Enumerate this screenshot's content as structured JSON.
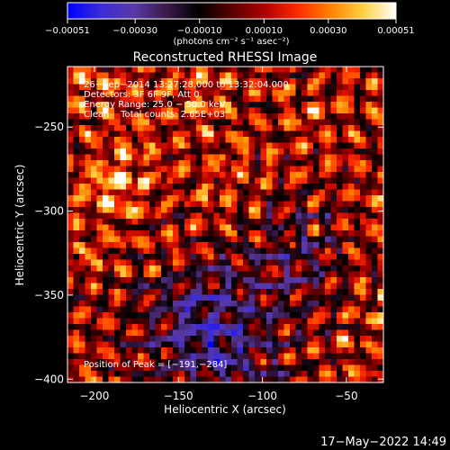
{
  "chart_data": {
    "type": "heatmap",
    "title": "Reconstructed RHESSI Image",
    "xlabel": "Heliocentric X (arcsec)",
    "ylabel": "Heliocentric Y (arcsec)",
    "xlim": [
      -216,
      -28
    ],
    "ylim": [
      -402,
      -214
    ],
    "x_ticks": [
      -200,
      -150,
      -100,
      -50
    ],
    "x_tick_labels": [
      "−200",
      "−150",
      "−100",
      "−50"
    ],
    "y_ticks": [
      -250,
      -300,
      -350,
      -400
    ],
    "y_tick_labels": [
      "−250",
      "−300",
      "−350",
      "−400"
    ],
    "grid": false,
    "colormap": [
      "#0000ff",
      "#3b2bd8",
      "#5a3aa8",
      "#3a1a4a",
      "#000000",
      "#5a0000",
      "#b00000",
      "#ff2a00",
      "#ff8000",
      "#ffd040",
      "#ffffff"
    ],
    "colorbar": {
      "min": -0.00051,
      "max": 0.00051,
      "tick_values": [
        -0.00051,
        -0.0003,
        -0.0001,
        0.0001,
        0.0003,
        0.00051
      ],
      "tick_labels": [
        "−0.00051",
        "−0.00030",
        "−0.00010",
        "0.00010",
        "0.00030",
        "0.00051"
      ],
      "units_label": "(photons cm⁻² s⁻¹ asec⁻²)"
    },
    "annotations": {
      "line1": "26−Sep−2014 13:27:28.000 to 13:32:04.000",
      "line2": "Detectors: 3F 6F 9F, Att 0",
      "line3": "Energy Range: 25.0 − 50.0 keV",
      "line4": "Clean    Total counts: 2.65E+03",
      "peak": "Position of Peak = [−191,−284]"
    },
    "peak": [
      -191,
      -284
    ]
  },
  "footer": {
    "timestamp": "17−May−2022 14:49"
  }
}
